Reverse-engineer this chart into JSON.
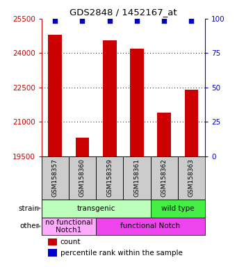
{
  "title": "GDS2848 / 1452167_at",
  "samples": [
    "GSM158357",
    "GSM158360",
    "GSM158359",
    "GSM158361",
    "GSM158362",
    "GSM158363"
  ],
  "counts": [
    24800,
    20300,
    24550,
    24200,
    21400,
    22400
  ],
  "ylim_left": [
    19500,
    25500
  ],
  "ylim_right": [
    0,
    100
  ],
  "yticks_left": [
    19500,
    21000,
    22500,
    24000,
    25500
  ],
  "yticks_right": [
    0,
    25,
    50,
    75,
    100
  ],
  "bar_color": "#cc0000",
  "dot_color": "#0000cc",
  "strain_groups": [
    {
      "label": "transgenic",
      "cols": [
        0,
        1,
        2,
        3
      ],
      "color": "#bbffbb"
    },
    {
      "label": "wild type",
      "cols": [
        4,
        5
      ],
      "color": "#44ee44"
    }
  ],
  "other_groups": [
    {
      "label": "no functional\nNotch1",
      "cols": [
        0,
        1
      ],
      "color": "#ffaaff"
    },
    {
      "label": "functional Notch",
      "cols": [
        2,
        3,
        4,
        5
      ],
      "color": "#ee44ee"
    }
  ],
  "tick_label_color_left": "#cc0000",
  "tick_label_color_right": "#0000cc",
  "bar_width": 0.5,
  "label_row_color": "#cccccc"
}
